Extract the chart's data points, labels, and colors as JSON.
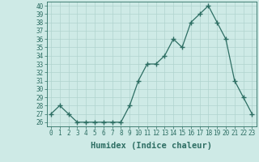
{
  "xlabel": "Humidex (Indice chaleur)",
  "x_values": [
    0,
    1,
    2,
    3,
    4,
    5,
    6,
    7,
    8,
    9,
    10,
    11,
    12,
    13,
    14,
    15,
    16,
    17,
    18,
    19,
    20,
    21,
    22,
    23
  ],
  "y_values": [
    27,
    28,
    27,
    26,
    26,
    26,
    26,
    26,
    26,
    28,
    31,
    33,
    33,
    34,
    36,
    35,
    38,
    39,
    40,
    38,
    36,
    31,
    29,
    27
  ],
  "ylim": [
    25.5,
    40.5
  ],
  "yticks": [
    26,
    27,
    28,
    29,
    30,
    31,
    32,
    33,
    34,
    35,
    36,
    37,
    38,
    39,
    40
  ],
  "line_color": "#2d6e63",
  "marker": "+",
  "marker_size": 5,
  "bg_color": "#ceeae6",
  "grid_color": "#b0d4ce",
  "axis_color": "#2d6e63",
  "tick_fontsize": 5.5,
  "xlabel_fontsize": 7.5
}
